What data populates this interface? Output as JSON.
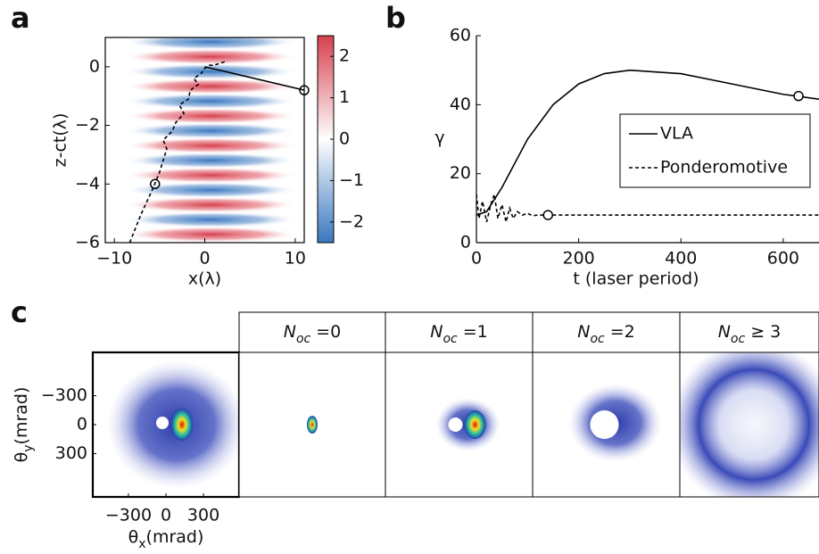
{
  "chart_data": [
    {
      "type": "heatmap",
      "panel_label": "a",
      "xlabel": "x(λ)",
      "ylabel": "z-ct(λ)",
      "xlim": [
        -11,
        11
      ],
      "ylim": [
        -6,
        1
      ],
      "xticks": [
        {
          "value": -10,
          "label": "−10"
        },
        0,
        10
      ],
      "yticks": [
        0,
        {
          "value": -2,
          "label": "−2"
        },
        {
          "value": -4,
          "label": "−4"
        },
        {
          "value": -6,
          "label": "−6"
        }
      ],
      "clim": [
        -2.5,
        2.5
      ],
      "cticks": [
        2,
        1,
        0,
        {
          "value": -1,
          "label": "−1"
        },
        {
          "value": -2,
          "label": "−2"
        }
      ],
      "colors": {
        "high": "#d6404e",
        "mid": "#ffffff",
        "low": "#3a78c0"
      },
      "lines": [
        {
          "dashed": false,
          "x": [
            0,
            12
          ],
          "y": [
            0,
            -0.87
          ]
        },
        {
          "dashed": true,
          "x": [
            -8.3,
            -7,
            -5.8,
            -5,
            -4.6,
            -4.2,
            -4.6,
            -3.6,
            -3.2,
            -2.3,
            -2.8,
            -1.8,
            -1.6,
            -0.7,
            -1.2,
            -0.3,
            -0.2,
            0.5,
            1,
            2.5
          ],
          "y": [
            -6,
            -5,
            -4.2,
            -3.6,
            -3.2,
            -2.8,
            -2.5,
            -2.2,
            -1.9,
            -1.6,
            -1.3,
            -1.1,
            -0.8,
            -0.6,
            -0.4,
            -0.2,
            -0.1,
            0.05,
            0.05,
            0.2
          ]
        }
      ],
      "markers": [
        {
          "x": 11,
          "y": -0.8
        },
        {
          "x": -5.5,
          "y": -4
        }
      ]
    },
    {
      "type": "line",
      "panel_label": "b",
      "xlabel": "t (laser period)",
      "ylabel": "γ",
      "xlim": [
        0,
        670
      ],
      "ylim": [
        0,
        60
      ],
      "xticks": [
        0,
        200,
        400,
        600
      ],
      "yticks": [
        0,
        20,
        40,
        60
      ],
      "legend": "upper right",
      "series": [
        {
          "name": "VLA",
          "color": "#000000",
          "dashed": false,
          "x": [
            0,
            20,
            50,
            100,
            150,
            200,
            250,
            300,
            400,
            500,
            600,
            700
          ],
          "values": [
            8,
            9,
            16,
            30,
            40,
            46,
            49,
            50,
            49,
            46,
            43,
            41
          ],
          "marker": {
            "x": 630,
            "y": 42.5
          }
        },
        {
          "name": "Ponderomotive",
          "color": "#000000",
          "dashed": true,
          "x": [
            0,
            5,
            12,
            20,
            28,
            35,
            42,
            50,
            58,
            65,
            72,
            80,
            90,
            100,
            110,
            120,
            140,
            700
          ],
          "values": [
            14,
            7,
            12,
            6,
            11,
            14,
            7,
            11,
            6,
            10,
            7,
            9,
            8,
            8.5,
            7.8,
            8,
            8,
            8
          ],
          "marker": {
            "x": 140,
            "y": 8
          }
        }
      ]
    },
    {
      "type": "image",
      "panel_label": "c",
      "xlabel": {
        "symbol": "θ",
        "sub": "x",
        "unit": "(mrad)"
      },
      "ylabel": {
        "symbol": "θ",
        "sub": "y",
        "unit": "(mrad)"
      },
      "xlim": [
        -585,
        585
      ],
      "ylim": [
        -750,
        750
      ],
      "yreversed": true,
      "xticks": [
        {
          "value": -300,
          "label": "−300"
        },
        0,
        300
      ],
      "yticks": [
        {
          "value": -300,
          "label": "−300"
        },
        0,
        300
      ],
      "images": [
        {
          "title": null
        },
        {
          "title": {
            "text": "N",
            "sub": "oc",
            "suffix": " =0"
          }
        },
        {
          "title": {
            "text": "N",
            "sub": "oc",
            "suffix": " =1"
          }
        },
        {
          "title": {
            "text": "N",
            "sub": "oc",
            "suffix": " =2"
          }
        },
        {
          "title": {
            "text": "N",
            "sub": "oc",
            "suffix": " ≥ 3"
          }
        }
      ]
    }
  ]
}
